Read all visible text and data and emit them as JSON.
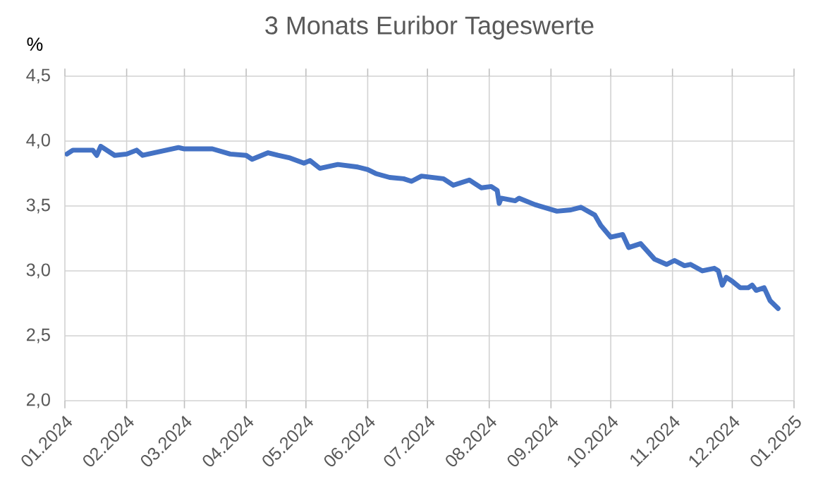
{
  "chart_data": {
    "type": "line",
    "title": "3 Monats Euribor Tageswerte",
    "ylabel": "%",
    "series": [
      {
        "color": "#4472c4",
        "x": [
          "2024-01-02",
          "2024-01-05",
          "2024-01-15",
          "2024-01-17",
          "2024-01-19",
          "2024-01-26",
          "2024-02-01",
          "2024-02-06",
          "2024-02-09",
          "2024-02-27",
          "2024-03-01",
          "2024-03-15",
          "2024-03-24",
          "2024-04-01",
          "2024-04-04",
          "2024-04-12",
          "2024-04-17",
          "2024-04-23",
          "2024-04-30",
          "2024-05-03",
          "2024-05-08",
          "2024-05-17",
          "2024-05-27",
          "2024-06-01",
          "2024-06-05",
          "2024-06-12",
          "2024-06-19",
          "2024-06-23",
          "2024-06-28",
          "2024-07-09",
          "2024-07-14",
          "2024-07-22",
          "2024-07-28",
          "2024-08-02",
          "2024-08-05",
          "2024-08-06",
          "2024-08-07",
          "2024-08-14",
          "2024-08-16",
          "2024-08-24",
          "2024-09-04",
          "2024-09-11",
          "2024-09-16",
          "2024-09-23",
          "2024-09-26",
          "2024-10-01",
          "2024-10-07",
          "2024-10-10",
          "2024-10-16",
          "2024-10-23",
          "2024-10-29",
          "2024-11-02",
          "2024-11-07",
          "2024-11-10",
          "2024-11-16",
          "2024-11-22",
          "2024-11-24",
          "2024-11-26",
          "2024-11-28",
          "2024-12-01",
          "2024-12-05",
          "2024-12-09",
          "2024-12-11",
          "2024-12-13",
          "2024-12-17",
          "2024-12-20",
          "2024-12-24"
        ],
        "values": [
          3.9,
          3.93,
          3.93,
          3.89,
          3.96,
          3.89,
          3.9,
          3.93,
          3.89,
          3.95,
          3.94,
          3.94,
          3.9,
          3.89,
          3.86,
          3.91,
          3.89,
          3.87,
          3.83,
          3.85,
          3.79,
          3.82,
          3.8,
          3.78,
          3.75,
          3.72,
          3.71,
          3.69,
          3.73,
          3.71,
          3.66,
          3.7,
          3.64,
          3.65,
          3.62,
          3.52,
          3.56,
          3.54,
          3.56,
          3.51,
          3.46,
          3.47,
          3.49,
          3.43,
          3.35,
          3.26,
          3.28,
          3.18,
          3.21,
          3.09,
          3.05,
          3.08,
          3.04,
          3.05,
          3.0,
          3.02,
          3.0,
          2.89,
          2.95,
          2.92,
          2.87,
          2.87,
          2.89,
          2.85,
          2.87,
          2.77,
          2.71
        ]
      }
    ],
    "xlim": [
      "2024-01-01",
      "2025-01-01"
    ],
    "xticks": [
      {
        "value": "2024-01-01",
        "label": "01.2024"
      },
      {
        "value": "2024-02-01",
        "label": "02.2024"
      },
      {
        "value": "2024-03-01",
        "label": "03.2024"
      },
      {
        "value": "2024-04-01",
        "label": "04.2024"
      },
      {
        "value": "2024-05-01",
        "label": "05.2024"
      },
      {
        "value": "2024-06-01",
        "label": "06.2024"
      },
      {
        "value": "2024-07-01",
        "label": "07.2024"
      },
      {
        "value": "2024-08-01",
        "label": "08.2024"
      },
      {
        "value": "2024-09-01",
        "label": "09.2024"
      },
      {
        "value": "2024-10-01",
        "label": "10.2024"
      },
      {
        "value": "2024-11-01",
        "label": "11.2024"
      },
      {
        "value": "2024-12-01",
        "label": "12.2024"
      },
      {
        "value": "2025-01-01",
        "label": "01.2025"
      }
    ],
    "ylim": [
      2.0,
      4.5
    ],
    "yticks": [
      {
        "value": 2.0,
        "label": "2,0"
      },
      {
        "value": 2.5,
        "label": "2,5"
      },
      {
        "value": 3.0,
        "label": "3,0"
      },
      {
        "value": 3.5,
        "label": "3,5"
      },
      {
        "value": 4.0,
        "label": "4,0"
      },
      {
        "value": 4.5,
        "label": "4,5"
      }
    ],
    "grid": true
  }
}
